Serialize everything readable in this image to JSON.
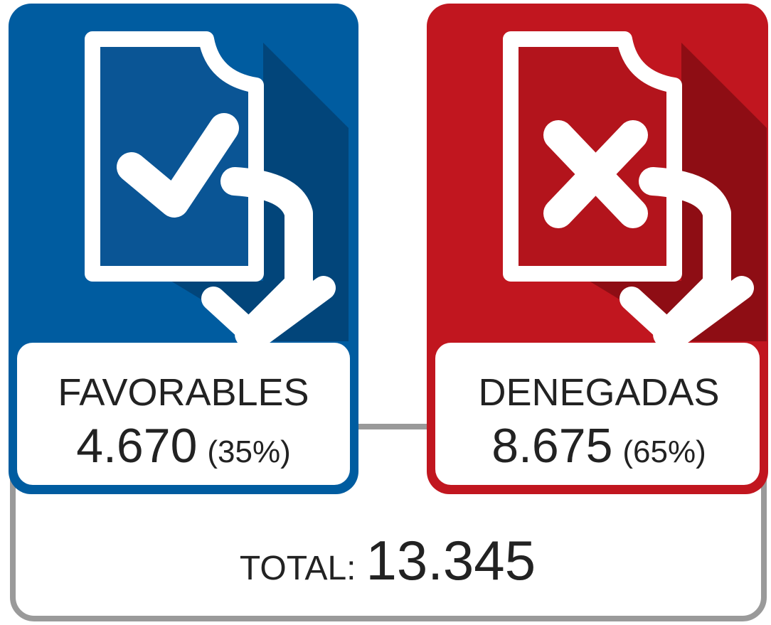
{
  "cards": [
    {
      "label": "FAVORABLES",
      "value": "4.670",
      "percent": "(35%)"
    },
    {
      "label": "DENEGADAS",
      "value": "8.675",
      "percent": "(65%)"
    }
  ],
  "total": {
    "label": "TOTAL:",
    "value": "13.345"
  }
}
